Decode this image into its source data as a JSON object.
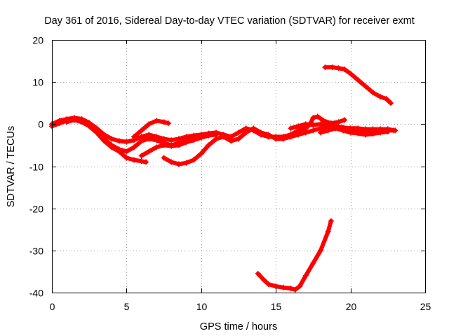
{
  "chart_data": {
    "type": "scatter",
    "title": "Day 361 of 2016, Sidereal Day-to-day VTEC variation (SDTVAR) for receiver exmt",
    "xlabel": "GPS time / hours",
    "ylabel": "SDTVAR / TECUs",
    "xlim": [
      0,
      25
    ],
    "ylim": [
      -40,
      20
    ],
    "xticks": [
      0,
      5,
      10,
      15,
      20,
      25
    ],
    "yticks": [
      20,
      10,
      0,
      -10,
      -20,
      -30,
      -40
    ],
    "xtick_labels": [
      "0",
      "5",
      "10",
      "15",
      "20",
      "25"
    ],
    "ytick_labels": [
      "20",
      "10",
      "0",
      "-10",
      "-20",
      "-30",
      "-40"
    ],
    "grid": true,
    "marker": "+",
    "color": "#ff0000",
    "series": [
      {
        "name": "track-1",
        "points": [
          [
            0,
            0
          ],
          [
            0.5,
            0.8
          ],
          [
            1,
            1.2
          ],
          [
            1.5,
            1.5
          ],
          [
            2,
            1.2
          ],
          [
            2.5,
            0.3
          ],
          [
            3,
            -1
          ],
          [
            3.5,
            -2.5
          ],
          [
            4,
            -3.5
          ],
          [
            4.5,
            -4
          ],
          [
            5,
            -4.2
          ],
          [
            5.5,
            -3.8
          ],
          [
            6,
            -3
          ],
          [
            6.5,
            -2.5
          ],
          [
            7,
            -3
          ],
          [
            7.5,
            -3.5
          ],
          [
            8,
            -3.8
          ],
          [
            8.5,
            -3.5
          ],
          [
            9,
            -3
          ],
          [
            9.5,
            -2.7
          ],
          [
            10,
            -2.5
          ],
          [
            10.5,
            -2.2
          ],
          [
            11,
            -2
          ],
          [
            11.5,
            -2.5
          ],
          [
            12,
            -3
          ],
          [
            12.5,
            -2
          ],
          [
            13,
            -1
          ],
          [
            13.5,
            -1.5
          ],
          [
            14,
            -2.5
          ],
          [
            14.5,
            -3
          ],
          [
            15,
            -3
          ],
          [
            15.5,
            -3
          ],
          [
            16,
            -2.5
          ]
        ]
      },
      {
        "name": "track-2",
        "points": [
          [
            0,
            -0.5
          ],
          [
            0.5,
            0.2
          ],
          [
            1,
            0.8
          ],
          [
            1.5,
            1.2
          ],
          [
            2,
            0.8
          ],
          [
            2.5,
            0
          ],
          [
            3,
            -1.5
          ],
          [
            3.5,
            -3.5
          ],
          [
            4,
            -5
          ],
          [
            4.5,
            -6
          ],
          [
            5,
            -6.5
          ],
          [
            5.5,
            -5.5
          ],
          [
            6,
            -4
          ],
          [
            6.5,
            -3.5
          ],
          [
            7,
            -3.8
          ],
          [
            7.5,
            -4.5
          ],
          [
            8,
            -5
          ],
          [
            8.5,
            -4.5
          ],
          [
            9,
            -4
          ],
          [
            9.5,
            -3.5
          ],
          [
            10,
            -3
          ]
        ]
      },
      {
        "name": "track-3",
        "points": [
          [
            1,
            0.5
          ],
          [
            1.5,
            1
          ],
          [
            2,
            0.5
          ],
          [
            2.5,
            -0.5
          ],
          [
            3,
            -2
          ],
          [
            3.5,
            -4
          ],
          [
            4,
            -5.5
          ],
          [
            4.5,
            -6.5
          ],
          [
            5,
            -8
          ],
          [
            5.5,
            -8.5
          ],
          [
            6,
            -8.8
          ],
          [
            6.3,
            -9
          ]
        ]
      },
      {
        "name": "track-4",
        "points": [
          [
            6,
            -7.5
          ],
          [
            6.5,
            -6.5
          ],
          [
            7,
            -5.5
          ],
          [
            7.5,
            -5
          ],
          [
            8,
            -5.2
          ],
          [
            8.5,
            -5
          ],
          [
            9,
            -4.3
          ],
          [
            9.5,
            -3.8
          ],
          [
            10,
            -3.2
          ],
          [
            10.5,
            -2.7
          ],
          [
            11,
            -2.5
          ]
        ]
      },
      {
        "name": "track-5",
        "points": [
          [
            5.5,
            -3
          ],
          [
            6,
            -1.5
          ],
          [
            6.5,
            0
          ],
          [
            7,
            0.8
          ],
          [
            7.5,
            0.5
          ],
          [
            7.8,
            0.2
          ]
        ]
      },
      {
        "name": "track-6",
        "points": [
          [
            7.5,
            -8
          ],
          [
            8,
            -9
          ],
          [
            8.5,
            -9.5
          ],
          [
            9,
            -9.2
          ],
          [
            9.5,
            -8.5
          ],
          [
            10,
            -7
          ],
          [
            10.5,
            -5
          ],
          [
            11,
            -3.5
          ],
          [
            11.5,
            -3
          ],
          [
            12,
            -4
          ],
          [
            12.5,
            -3.5
          ],
          [
            13,
            -2
          ],
          [
            13.5,
            -1
          ],
          [
            14,
            -2
          ],
          [
            14.5,
            -2.5
          ],
          [
            15,
            -3.5
          ],
          [
            15.5,
            -3.5
          ],
          [
            16,
            -3
          ],
          [
            16.5,
            -2.5
          ],
          [
            17,
            -2
          ],
          [
            17.5,
            -1.5
          ],
          [
            18,
            -1
          ],
          [
            18.5,
            -0.5
          ],
          [
            19,
            -0.5
          ],
          [
            19.5,
            -1
          ],
          [
            20,
            -1.5
          ],
          [
            20.5,
            -1.8
          ],
          [
            21,
            -1.8
          ],
          [
            21.5,
            -1.5
          ],
          [
            22,
            -1.5
          ],
          [
            22.5,
            -1.5
          ],
          [
            22.9,
            -1.5
          ]
        ]
      },
      {
        "name": "track-7",
        "points": [
          [
            15.5,
            -3
          ],
          [
            16,
            -2.5
          ],
          [
            16.5,
            -1.5
          ],
          [
            17,
            -1
          ],
          [
            17.3,
            0
          ],
          [
            17.5,
            1.5
          ],
          [
            17.8,
            1.8
          ],
          [
            18.2,
            0.8
          ],
          [
            18.7,
            0.2
          ],
          [
            19.2,
            0.5
          ],
          [
            19.6,
            1
          ]
        ]
      },
      {
        "name": "track-8",
        "points": [
          [
            16,
            -1
          ],
          [
            16.5,
            -0.5
          ],
          [
            17,
            0
          ],
          [
            17.5,
            -0.2
          ],
          [
            18,
            0
          ],
          [
            18.5,
            0
          ],
          [
            19,
            -0.5
          ],
          [
            19.5,
            -0.8
          ],
          [
            20,
            -1
          ],
          [
            20.5,
            -1
          ],
          [
            21,
            -1.2
          ],
          [
            21.5,
            -1.2
          ],
          [
            22,
            -1.2
          ],
          [
            22.5,
            -1.2
          ],
          [
            23,
            -1.5
          ]
        ]
      },
      {
        "name": "track-9",
        "points": [
          [
            18,
            -2
          ],
          [
            18.5,
            -1.5
          ],
          [
            19,
            -1
          ],
          [
            19.5,
            -1.5
          ],
          [
            20,
            -2
          ],
          [
            20.5,
            -2.2
          ],
          [
            21,
            -2.5
          ],
          [
            21.5,
            -2.3
          ],
          [
            22,
            -2
          ],
          [
            22.5,
            -1.8
          ]
        ]
      },
      {
        "name": "track-10",
        "points": [
          [
            18.3,
            13.5
          ],
          [
            18.8,
            13.5
          ],
          [
            19.2,
            13.3
          ],
          [
            19.6,
            13
          ],
          [
            20,
            12
          ],
          [
            20.5,
            10.5
          ],
          [
            21,
            9
          ],
          [
            21.5,
            7.5
          ],
          [
            22,
            6.5
          ],
          [
            22.4,
            6
          ],
          [
            22.7,
            5
          ]
        ]
      },
      {
        "name": "track-11",
        "points": [
          [
            13.8,
            -35.5
          ],
          [
            14.2,
            -37
          ],
          [
            14.5,
            -38
          ],
          [
            15,
            -38.5
          ],
          [
            15.5,
            -38.8
          ],
          [
            16,
            -39
          ],
          [
            16.3,
            -39.3
          ],
          [
            16.6,
            -38.5
          ],
          [
            17,
            -36
          ],
          [
            17.5,
            -33
          ],
          [
            18,
            -30
          ],
          [
            18.5,
            -25.5
          ],
          [
            18.7,
            -23
          ]
        ]
      }
    ]
  }
}
